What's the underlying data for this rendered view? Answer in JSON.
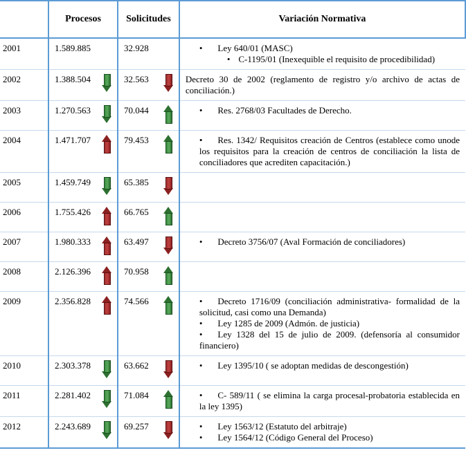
{
  "headers": {
    "col1": "",
    "col2": "Procesos",
    "col3": "Solicitudes",
    "col4": "Variación Normativa"
  },
  "rows": [
    {
      "year": "2001",
      "procesos": "1.589.885",
      "proc_arrow": "",
      "solicitudes": "32.928",
      "sol_arrow": "",
      "norma": [
        {
          "type": "bullet",
          "text": "Ley 640/01 (MASC)"
        },
        {
          "type": "sub",
          "text": "C-1195/01 (Inexequible el requisito de procedibilidad)"
        }
      ]
    },
    {
      "year": "2002",
      "procesos": "1.388.504",
      "proc_arrow": "down-green",
      "solicitudes": "32.563",
      "sol_arrow": "down-red",
      "norma": [
        {
          "type": "plain",
          "text": "Decreto 30 de 2002 (reglamento de registro y/o archivo de actas de conciliación.)"
        }
      ]
    },
    {
      "year": "2003",
      "procesos": "1.270.563",
      "proc_arrow": "down-green",
      "solicitudes": "70.044",
      "sol_arrow": "up-green",
      "norma": [
        {
          "type": "bullet",
          "text": "Res. 2768/03 Facultades de Derecho."
        }
      ]
    },
    {
      "year": "2004",
      "procesos": "1.471.707",
      "proc_arrow": "up-red",
      "solicitudes": "79.453",
      "sol_arrow": "up-green",
      "norma": [
        {
          "type": "bullet",
          "text": "Res. 1342/ Requisitos creación de Centros (establece como unode los requisitos para la creación de centros de conciliación la lista de conciliadores que acrediten capacitación.)"
        }
      ]
    },
    {
      "year": "2005",
      "procesos": "1.459.749",
      "proc_arrow": "down-green",
      "solicitudes": "65.385",
      "sol_arrow": "down-red",
      "norma": []
    },
    {
      "year": "2006",
      "procesos": "1.755.426",
      "proc_arrow": "up-red",
      "solicitudes": "66.765",
      "sol_arrow": "up-green",
      "norma": []
    },
    {
      "year": "2007",
      "procesos": "1.980.333",
      "proc_arrow": "up-red",
      "solicitudes": "63.497",
      "sol_arrow": "down-red",
      "norma": [
        {
          "type": "bullet",
          "text": "Decreto 3756/07 (Aval Formación de conciliadores)"
        }
      ]
    },
    {
      "year": "2008",
      "procesos": "2.126.396",
      "proc_arrow": "up-red",
      "solicitudes": "70.958",
      "sol_arrow": "up-green",
      "norma": []
    },
    {
      "year": "2009",
      "procesos": "2.356.828",
      "proc_arrow": "up-red",
      "solicitudes": "74.566",
      "sol_arrow": "up-green",
      "norma": [
        {
          "type": "bullet",
          "text": "Decreto 1716/09 (conciliación administrativa- formalidad de la solicitud, casi como una Demanda)"
        },
        {
          "type": "bullet",
          "text": "Ley 1285 de 2009 (Admón. de justicia)"
        },
        {
          "type": "bullet",
          "text": "Ley 1328 del 15 de julio de 2009. (defensoría al consumidor financiero)"
        }
      ]
    },
    {
      "year": "2010",
      "procesos": "2.303.378",
      "proc_arrow": "down-green",
      "solicitudes": "63.662",
      "sol_arrow": "down-red",
      "norma": [
        {
          "type": "bullet",
          "text": "Ley 1395/10 ( se adoptan medidas de descongestión)"
        }
      ]
    },
    {
      "year": "2011",
      "procesos": "2.281.402",
      "proc_arrow": "down-green",
      "solicitudes": "71.084",
      "sol_arrow": "up-green",
      "norma": [
        {
          "type": "bullet",
          "text": "C- 589/11 ( se elimina la carga procesal-probatoria establecida en la ley 1395)"
        }
      ]
    },
    {
      "year": "2012",
      "procesos": "2.243.689",
      "proc_arrow": "down-green",
      "solicitudes": "69.257",
      "sol_arrow": "down-red",
      "norma": [
        {
          "type": "bullet",
          "text": "Ley 1563/12 (Estatuto del arbitraje)"
        },
        {
          "type": "bullet",
          "text": "Ley 1564/12 (Código General del Proceso)"
        }
      ]
    }
  ],
  "colors": {
    "border": "#5b9bd5",
    "red_arrow": "#8b2020",
    "green_arrow": "#2d7030",
    "row_border": "#c5d9ed"
  }
}
